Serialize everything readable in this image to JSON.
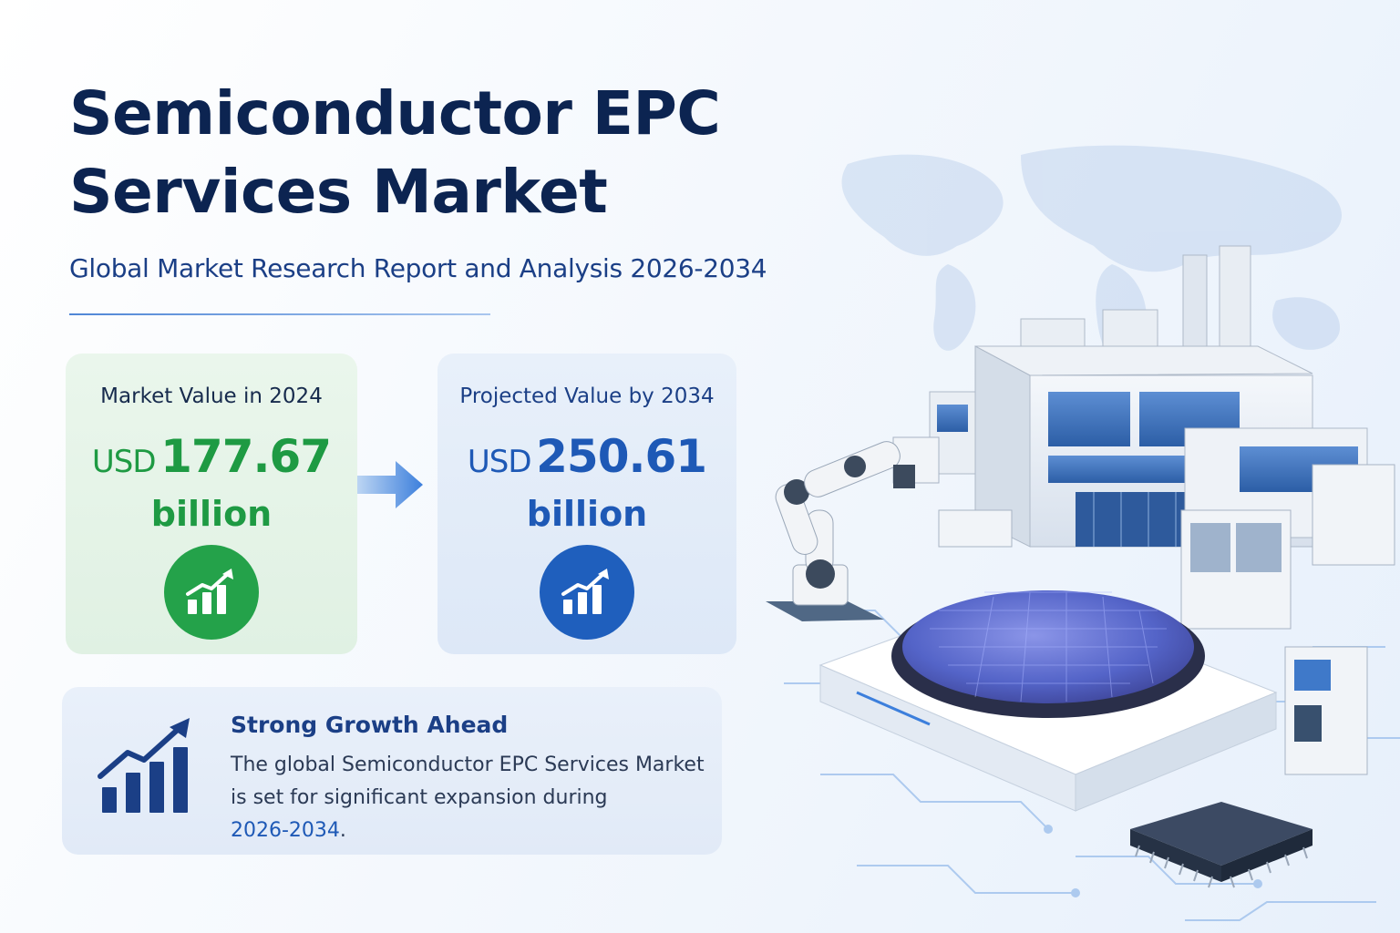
{
  "header": {
    "title_line1": "Semiconductor EPC",
    "title_line2": "Services Market",
    "subtitle": "Global Market Research Report and Analysis 2026-2034"
  },
  "cards": [
    {
      "label": "Market Value in 2024",
      "currency": "USD",
      "value": "177.67",
      "unit": "billion",
      "icon": "growth-chart-icon",
      "color": "#1e9a43"
    },
    {
      "label": "Projected Value by 2034",
      "currency": "USD",
      "value": "250.61",
      "unit": "billion",
      "icon": "growth-chart-icon",
      "color": "#1e59b6"
    }
  ],
  "growth": {
    "title": "Strong Growth Ahead",
    "text_main": "The global Semiconductor EPC Services Market is set for significant expansion during",
    "text_highlight": "2026-2034",
    "text_end": ".",
    "icon": "bar-chart-trend-icon"
  },
  "illustration": {
    "icons": [
      "world-map",
      "semiconductor-factory",
      "robotic-arm",
      "silicon-wafer",
      "microchip",
      "circuit-traces"
    ]
  },
  "colors": {
    "title": "#0c2451",
    "accent_green": "#24a24a",
    "accent_blue": "#1f5fbd"
  }
}
